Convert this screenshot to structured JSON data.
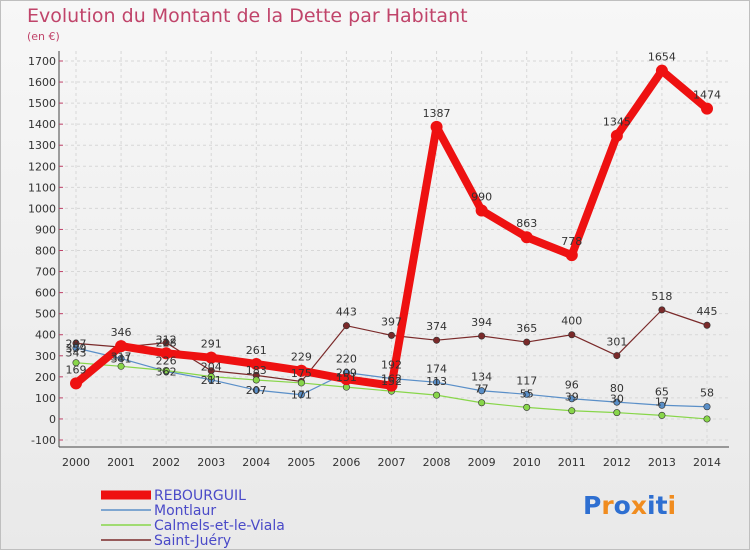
{
  "chart_data": {
    "type": "line",
    "title": "Evolution du Montant de la Dette par Habitant",
    "subtitle": "(en €)",
    "ylim": [
      -100,
      1700
    ],
    "yticks": [
      -100,
      0,
      100,
      200,
      300,
      400,
      500,
      600,
      700,
      800,
      900,
      1000,
      1100,
      1200,
      1300,
      1400,
      1500,
      1600,
      1700
    ],
    "categories": [
      "2000",
      "2001",
      "2002",
      "2003",
      "2004",
      "2005",
      "2006",
      "2007",
      "2008",
      "2009",
      "2010",
      "2011",
      "2012",
      "2013",
      "2014"
    ],
    "grid": true,
    "legend_position": "bottom-left",
    "series": [
      {
        "name": "REBOURGUIL",
        "color": "#ee1111",
        "values": [
          169,
          346,
          312,
          291,
          261,
          229,
          189,
          158,
          1387,
          990,
          863,
          778,
          1345,
          1654,
          1474
        ],
        "labels": [
          "169",
          "346",
          "312",
          "291",
          "261",
          "229",
          "",
          "",
          "1387",
          "990",
          "863",
          "778",
          "1345",
          "1654",
          "1474"
        ]
      },
      {
        "name": "Montlaur",
        "color": "#5a8fc8",
        "values": [
          337,
          287,
          226,
          186,
          137,
          115,
          220,
          192,
          174,
          134,
          117,
          96,
          80,
          65,
          58
        ],
        "labels": [
          "",
          "",
          "",
          "",
          "",
          "",
          "220",
          "192",
          "174",
          "134",
          "117",
          "96",
          "80",
          "65",
          "58"
        ]
      },
      {
        "name": "Calmels-et-le-Viala",
        "color": "#88d64a",
        "values": [
          267,
          250,
          230,
          201,
          185,
          171,
          151,
          132,
          113,
          77,
          55,
          39,
          30,
          17,
          0
        ],
        "labels": [
          "",
          "",
          "",
          "",
          "",
          "",
          "",
          "",
          "113",
          "77",
          "55",
          "39",
          "30",
          "17",
          ""
        ]
      },
      {
        "name": "Saint-Juéry",
        "color": "#7a2a2a",
        "values": [
          359,
          341,
          362,
          229,
          207,
          178,
          443,
          397,
          374,
          394,
          365,
          400,
          301,
          518,
          445
        ],
        "labels": [
          "",
          "",
          "",
          "",
          "",
          "",
          "443",
          "397",
          "374",
          "394",
          "365",
          "400",
          "301",
          "518",
          "445"
        ]
      }
    ],
    "extra_labels": [
      {
        "x": "2000",
        "text": "359"
      },
      {
        "x": "2000",
        "text": "343"
      },
      {
        "x": "2000",
        "text": "287"
      },
      {
        "x": "2001",
        "text": "341"
      },
      {
        "x": "2001",
        "text": "317"
      },
      {
        "x": "2002",
        "text": "362"
      },
      {
        "x": "2002",
        "text": "226"
      },
      {
        "x": "2002",
        "text": "228"
      },
      {
        "x": "2003",
        "text": "211"
      },
      {
        "x": "2003",
        "text": "204"
      },
      {
        "x": "2004",
        "text": "207"
      },
      {
        "x": "2004",
        "text": "183"
      },
      {
        "x": "2005",
        "text": "171"
      },
      {
        "x": "2005",
        "text": "175"
      },
      {
        "x": "2006",
        "text": "209"
      },
      {
        "x": "2006",
        "text": "151"
      },
      {
        "x": "2007",
        "text": "162"
      },
      {
        "x": "2007",
        "text": "152"
      }
    ]
  },
  "logo": {
    "text": "Proxiti",
    "letter_colors": [
      "#2e6fd1",
      "#f08c1f",
      "#2e6fd1",
      "#f08c1f",
      "#2e6fd1",
      "#2e6fd1",
      "#f08c1f"
    ]
  }
}
